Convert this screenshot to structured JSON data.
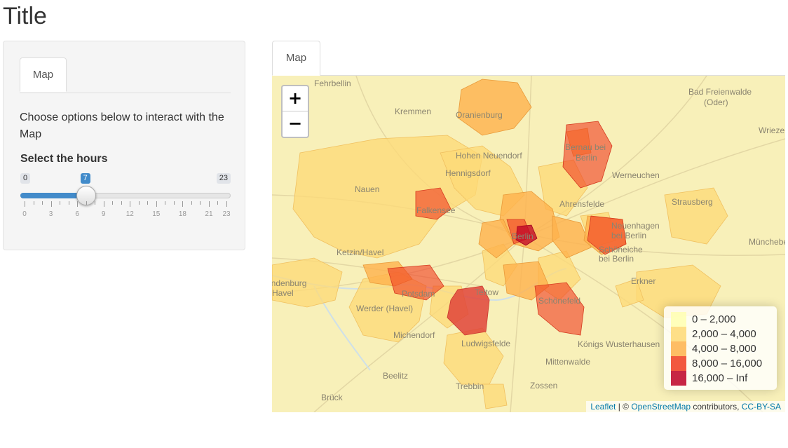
{
  "page": {
    "title": "Title"
  },
  "sidebar": {
    "tab_label": "Map",
    "description": "Choose options below to interact with the Map",
    "slider": {
      "label": "Select the hours",
      "min": 0,
      "max": 23,
      "value": 7,
      "min_label": "0",
      "max_label": "23",
      "value_label": "7",
      "tick_labels": [
        "0",
        "3",
        "6",
        "9",
        "12",
        "15",
        "18",
        "21",
        "23"
      ],
      "accent_color": "#428bca"
    }
  },
  "main": {
    "tab_label": "Map",
    "map": {
      "zoom_in_label": "+",
      "zoom_out_label": "−",
      "places": [
        "Fehrbellin",
        "Kremmen",
        "Oranienburg",
        "Bad Freienwalde",
        "(Oder)",
        "Wriezen",
        "Hohen Neuendorf",
        "Bernau bei",
        "Berlin",
        "Hennigsdorf",
        "Werneuchen",
        "Nauen",
        "Falkensee",
        "Ahrensfelde",
        "Strausberg",
        "Berlin",
        "Neuenhagen",
        "bei Berlin",
        "Schöneiche",
        "bei Berlin",
        "Müncheberg",
        "Ketzin/Havel",
        "Brandenburg",
        "Havel",
        "Potsdam",
        "Teltow",
        "Erkner",
        "Werder (Havel)",
        "Schönefeld",
        "Michendorf",
        "Ludwigsfelde",
        "Königs Wusterhausen",
        "Mittenwalde",
        "Beelitz",
        "Trebbin",
        "Zossen",
        "Brück"
      ],
      "legend": [
        {
          "label": "0 – 2,000",
          "color": "#ffffb2"
        },
        {
          "label": "2,000 – 4,000",
          "color": "#fed976"
        },
        {
          "label": "4,000 – 8,000",
          "color": "#feb24c"
        },
        {
          "label": "8,000 – 16,000",
          "color": "#f03b20"
        },
        {
          "label": "16,000 – Inf",
          "color": "#bd0026"
        }
      ],
      "attribution": {
        "leaflet": "Leaflet",
        "separator": " | © ",
        "osm": "OpenStreetMap",
        "contributors": " contributors, ",
        "license": "CC-BY-SA"
      }
    }
  }
}
